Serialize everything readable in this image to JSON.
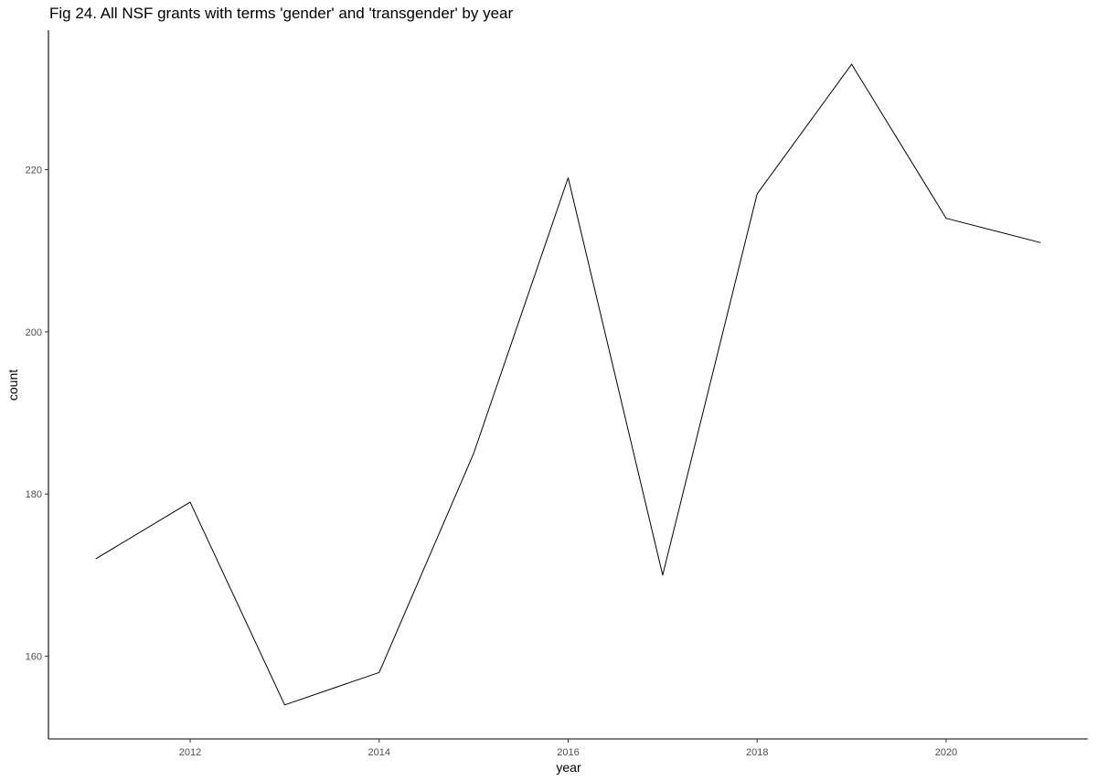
{
  "chart_data": {
    "type": "line",
    "title": "Fig 24. All NSF grants with terms 'gender' and 'transgender' by year",
    "xlabel": "year",
    "ylabel": "count",
    "x": [
      2011,
      2012,
      2013,
      2014,
      2015,
      2016,
      2017,
      2018,
      2019,
      2020,
      2021
    ],
    "series": [
      {
        "values": [
          172,
          179,
          154,
          158,
          185,
          219,
          170,
          217,
          233,
          214,
          211
        ]
      }
    ],
    "xlim": [
      2010.5,
      2021.5
    ],
    "ylim": [
      149.8,
      237.2
    ],
    "xticks": [
      2012,
      2014,
      2016,
      2018,
      2020
    ],
    "xtick_labels": [
      "2012",
      "2014",
      "2016",
      "2018",
      "2020"
    ],
    "yticks": [
      160,
      180,
      200,
      220
    ],
    "ytick_labels": [
      "160",
      "180",
      "200",
      "220"
    ],
    "grid": false,
    "legend": "none",
    "colors": {
      "line": "#000000",
      "axis": "#000000",
      "tick_text": "#4d4d4d"
    }
  }
}
